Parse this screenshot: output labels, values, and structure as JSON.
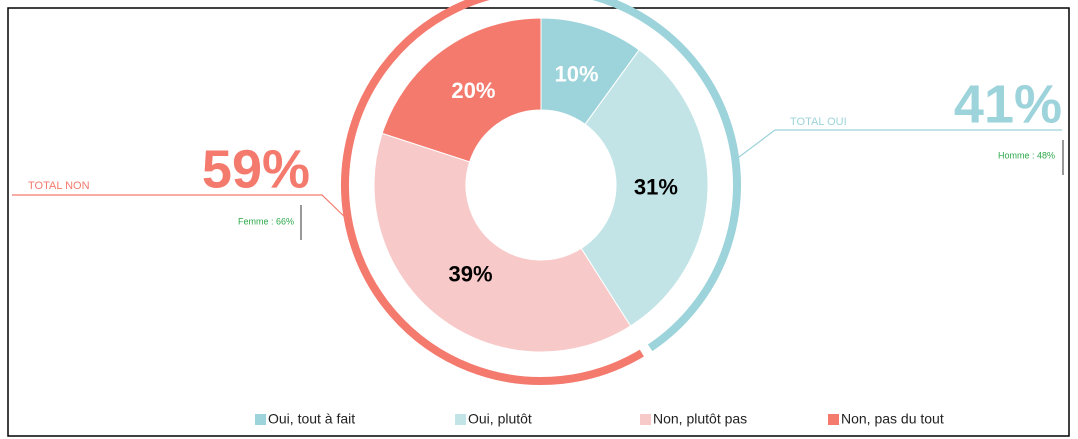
{
  "chart_data": {
    "type": "donut",
    "categories": [
      "Oui, tout à fait",
      "Oui, plutôt",
      "Non, plutôt pas",
      "Non, pas du tout"
    ],
    "values": [
      10,
      31,
      39,
      20
    ],
    "value_labels": [
      "10%",
      "31%",
      "39%",
      "20%"
    ],
    "colors": [
      "#9dd3da",
      "#c2e4e7",
      "#f7c9c8",
      "#f47a6e"
    ],
    "label_colors": [
      "#ffffff",
      "#000000",
      "#000000",
      "#ffffff"
    ],
    "totals": [
      {
        "label": "TOTAL OUI",
        "value": 41,
        "value_label": "41%",
        "note": "Homme : 48%",
        "color": "#9dd3da"
      },
      {
        "label": "TOTAL NON",
        "value": 59,
        "value_label": "59%",
        "note": "Femme : 66%",
        "color": "#f47a6e"
      }
    ],
    "legend": "bottom"
  }
}
